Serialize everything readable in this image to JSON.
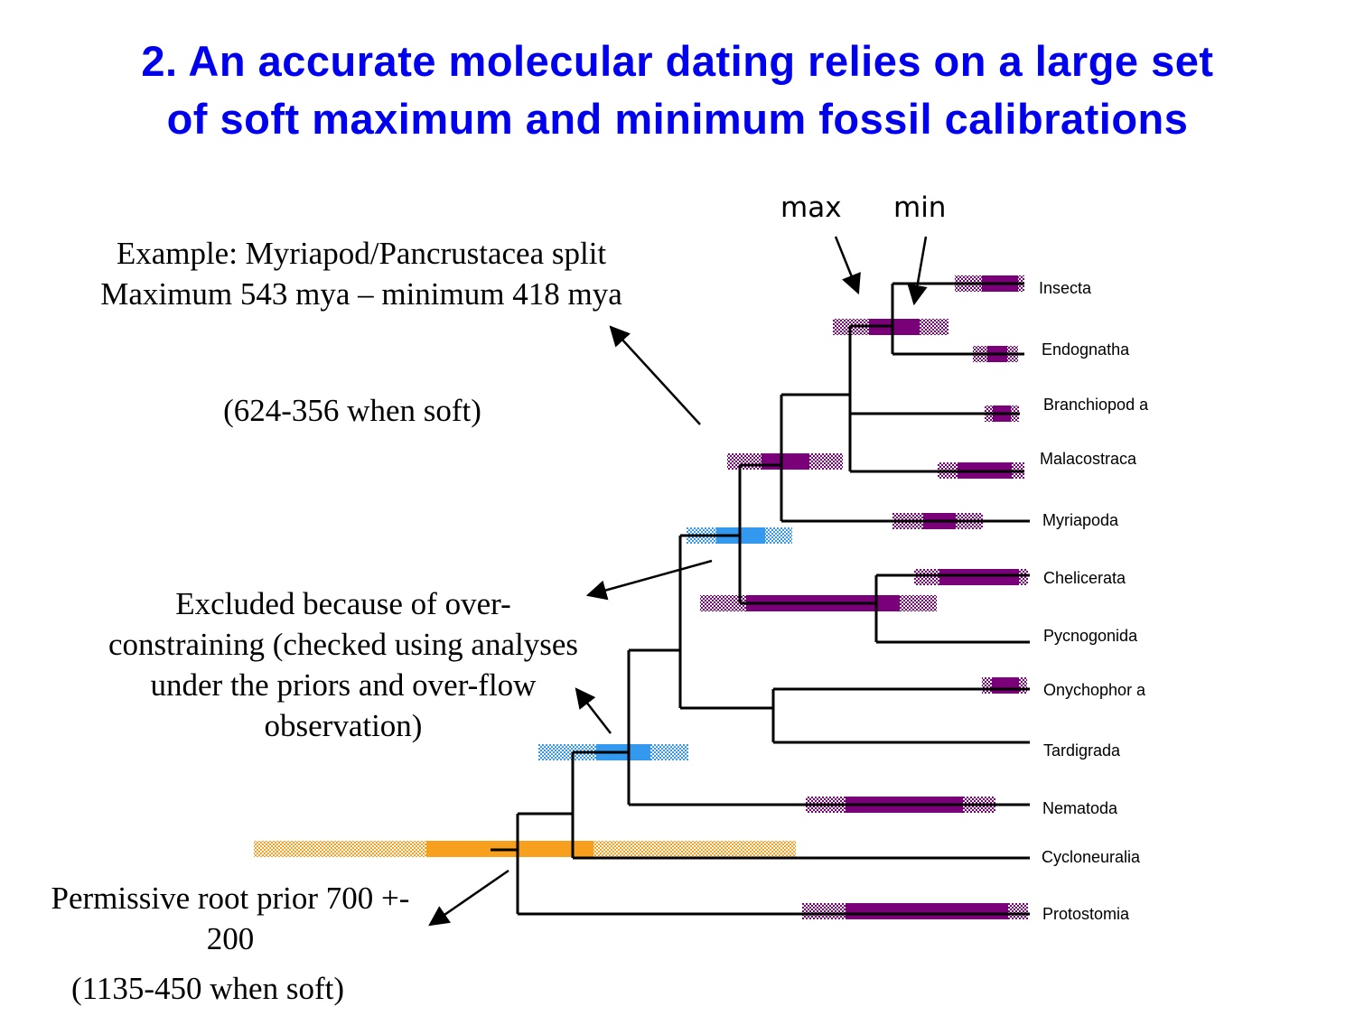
{
  "title": {
    "line1": "2. An accurate molecular dating relies on a large set",
    "line2": "of soft maximum and minimum fossil calibrations"
  },
  "annotations": {
    "example": "Example: Myriapod/Pancrustacea split Maximum 543 mya – minimum 418 mya",
    "example_soft": "(624-356 when soft)",
    "excluded": "Excluded because of over-constraining (checked using analyses under the priors and over-flow observation)",
    "root_prior": "Permissive root prior 700 +- 200",
    "root_soft": "(1135-450 when soft)"
  },
  "bound_labels": {
    "max": "max",
    "min": "min"
  },
  "taxa": [
    "Insecta",
    "Endognatha",
    "Branchiopod a",
    "Malacostraca",
    "Myriapoda",
    "Chelicerata",
    "Pycnogonida",
    "Onychophor a",
    "Tardigrada",
    "Nematoda",
    "Cycloneuralia",
    "Protostomia"
  ],
  "colors": {
    "title": "#0000ee",
    "calibration_purple": "#7a007a",
    "calibration_blue": "#3399ee",
    "root_orange": "#f7a01d",
    "branch": "#000000"
  }
}
